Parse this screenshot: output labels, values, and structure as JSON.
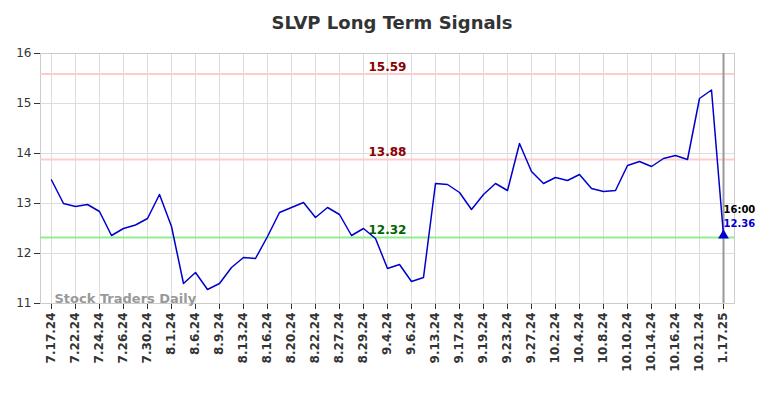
{
  "chart_data": {
    "type": "line",
    "title": "SLVP Long Term Signals",
    "categories": [
      "7.17.24",
      null,
      "7.22.24",
      null,
      "7.24.24",
      null,
      "7.26.24",
      null,
      "7.30.24",
      null,
      "8.1.24",
      null,
      "8.6.24",
      null,
      "8.9.24",
      null,
      "8.13.24",
      null,
      "8.16.24",
      null,
      "8.20.24",
      null,
      "8.22.24",
      null,
      "8.27.24",
      null,
      "8.29.24",
      null,
      "9.4.24",
      null,
      "9.6.24",
      null,
      "9.13.24",
      null,
      "9.17.24",
      null,
      "9.19.24",
      null,
      "9.23.24",
      null,
      "9.27.24",
      null,
      "10.2.24",
      null,
      "10.4.24",
      null,
      "10.8.24",
      null,
      "10.10.24",
      null,
      "10.14.24",
      null,
      "10.16.24",
      null,
      "10.21.24",
      null,
      "1.17.25"
    ],
    "values": [
      13.47,
      13.0,
      12.94,
      12.98,
      12.84,
      12.36,
      12.5,
      12.57,
      12.7,
      13.18,
      12.54,
      11.4,
      11.62,
      11.28,
      11.4,
      11.72,
      11.92,
      11.9,
      12.34,
      12.82,
      12.92,
      13.02,
      12.72,
      12.92,
      12.78,
      12.36,
      12.5,
      12.3,
      11.7,
      11.78,
      11.44,
      11.52,
      13.4,
      13.38,
      13.22,
      12.88,
      13.18,
      13.4,
      13.26,
      14.2,
      13.64,
      13.4,
      13.52,
      13.46,
      13.58,
      13.3,
      13.24,
      13.26,
      13.76,
      13.84,
      13.74,
      13.9,
      13.96,
      13.88,
      15.1,
      15.27,
      12.36
    ],
    "color": "#0000cc",
    "ylim": [
      11,
      16
    ],
    "yticks": [
      11,
      12,
      13,
      14,
      15,
      16
    ],
    "grid": true,
    "levels": [
      {
        "value": 15.59,
        "color": "#ffcccc",
        "label_color": "#8b0000"
      },
      {
        "value": 13.88,
        "color": "#ffcccc",
        "label_color": "#8b0000"
      },
      {
        "value": 12.32,
        "color": "#90ee90",
        "label_color": "#006400"
      }
    ],
    "end_label": {
      "time": "16:00",
      "value": 12.36,
      "marker": "triangle"
    },
    "watermark": "Stock Traders Daily"
  }
}
